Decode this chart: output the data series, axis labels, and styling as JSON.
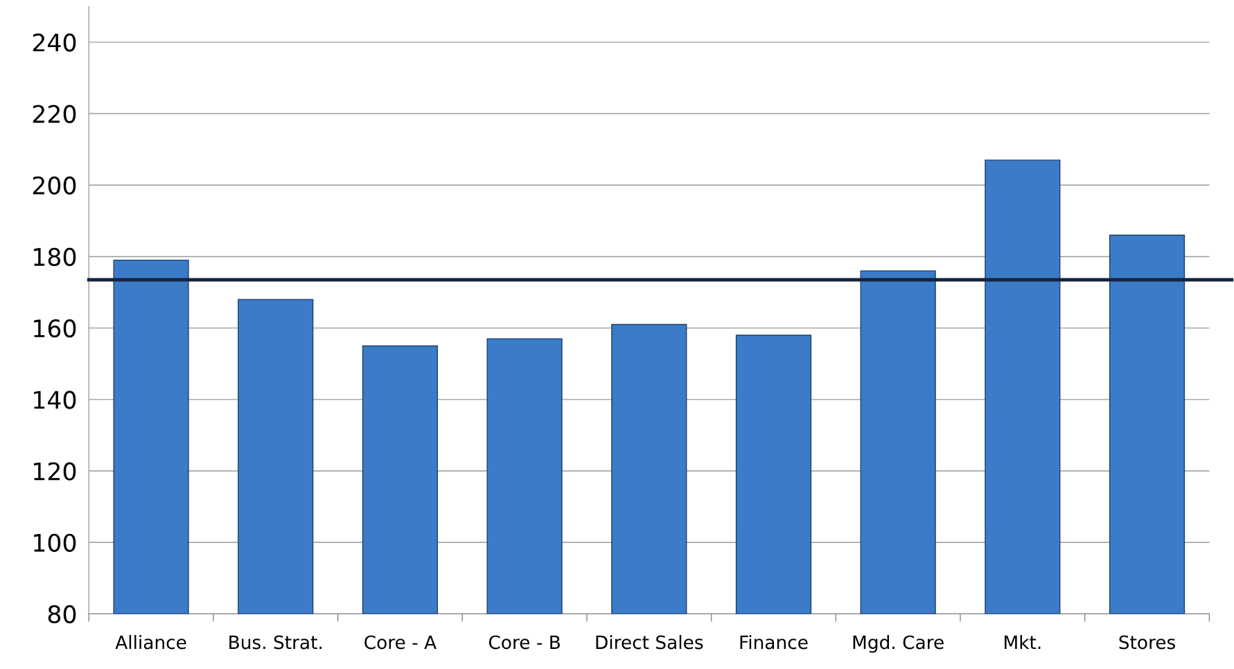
{
  "chart_data": {
    "type": "bar",
    "categories": [
      "Alliance",
      "Bus. Strat.",
      "Core - A",
      "Core - B",
      "Direct Sales",
      "Finance",
      "Mgd. Care",
      "Mkt.",
      "Stores"
    ],
    "values": [
      179,
      168,
      155,
      157,
      161,
      158,
      176,
      207,
      186
    ],
    "color": "#3b7bc8",
    "ylim": [
      80,
      250
    ],
    "yticks": [
      80,
      100,
      120,
      140,
      160,
      180,
      200,
      220,
      240
    ],
    "grid": "y",
    "ref_lines": [
      {
        "axis": "y",
        "value": 173.5,
        "color": "#14233f",
        "line_style": "solid"
      }
    ]
  }
}
